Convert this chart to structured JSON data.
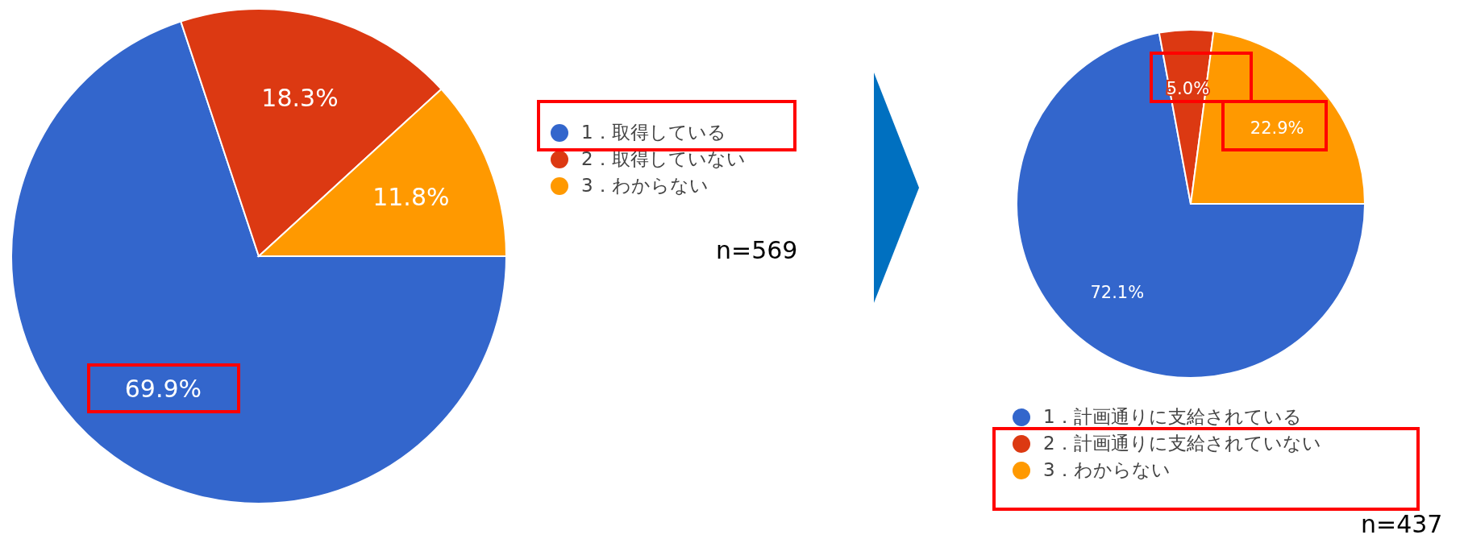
{
  "chart_data": [
    {
      "type": "pie",
      "categories": [
        "1．取得している",
        "2．取得していない",
        "3．わからない"
      ],
      "values": [
        69.9,
        18.3,
        11.8
      ],
      "colors": [
        "#3366cc",
        "#dc3912",
        "#ff9900"
      ],
      "value_labels": [
        "69.9%",
        "18.3%",
        "11.8%"
      ],
      "legend": "right",
      "annotations": [
        "n=569"
      ]
    },
    {
      "type": "pie",
      "categories": [
        "1．計画通りに支給されている",
        "2．計画通りに支給されていない",
        "3．わからない"
      ],
      "values": [
        72.1,
        5.0,
        22.9
      ],
      "colors": [
        "#3366cc",
        "#dc3912",
        "#ff9900"
      ],
      "value_labels": [
        "72.1%",
        "5.0%",
        "22.9%"
      ],
      "legend": "bottom",
      "annotations": [
        "n=437"
      ]
    }
  ]
}
